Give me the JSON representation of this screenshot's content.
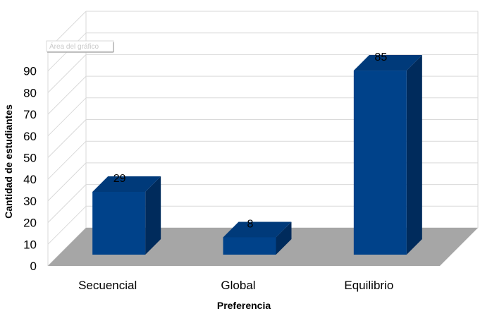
{
  "chart_data": {
    "type": "bar",
    "categories": [
      "Secuencial",
      "Global",
      "Equilibrio"
    ],
    "values": [
      29,
      8,
      85
    ],
    "xlabel": "Preferencia",
    "ylabel": "Cantidad de estudiantes",
    "ylim": [
      0,
      100
    ],
    "yticks": [
      0,
      10,
      20,
      30,
      40,
      50,
      60,
      70,
      80,
      90
    ],
    "grid": true,
    "three_d": true,
    "bar_color": "#00428a",
    "floor_color": "#a6a6a6"
  },
  "tooltip": {
    "text": "Área del gráfico"
  }
}
